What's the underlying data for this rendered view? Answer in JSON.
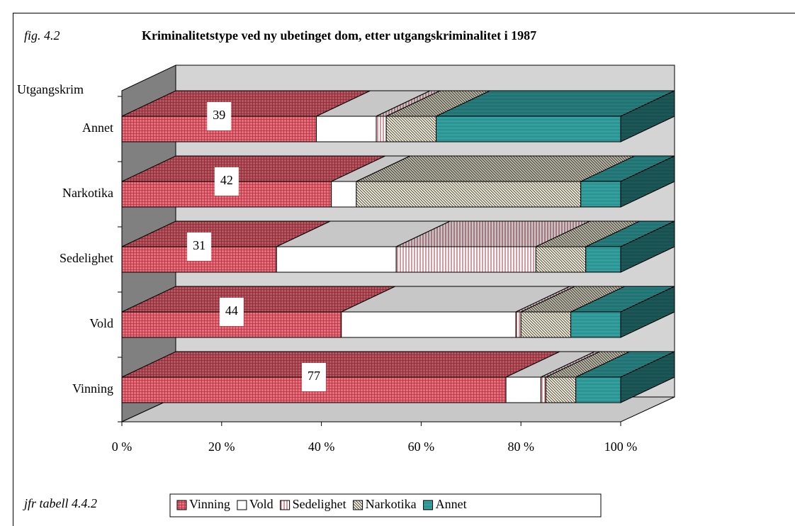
{
  "chart_data": {
    "type": "bar3d_stacked_horizontal",
    "figure_label": "fig. 4.2",
    "title": "Kriminalitetstype ved ny ubetinget dom, etter utgangskriminalitet i 1987",
    "y_axis_label": "Utgangskrim",
    "note": "jfr tabell 4.4.2",
    "categories": [
      "Annet",
      "Narkotika",
      "Sedelighet",
      "Vold",
      "Vinning"
    ],
    "series": [
      {
        "name": "Vinning",
        "color": "#e8707c",
        "values": [
          39,
          42,
          31,
          44,
          77
        ],
        "show_labels": true
      },
      {
        "name": "Vold",
        "color": "#ffffff",
        "values": [
          12,
          5,
          24,
          35,
          7
        ]
      },
      {
        "name": "Sedelighet",
        "color": "#ffffff",
        "values": [
          2,
          0,
          28,
          1,
          1
        ]
      },
      {
        "name": "Narkotika",
        "color": "#f4efd8",
        "values": [
          10,
          45,
          10,
          10,
          6
        ]
      },
      {
        "name": "Annet",
        "color": "#3cc0c0",
        "values": [
          37,
          8,
          7,
          10,
          9
        ]
      }
    ],
    "xlim": [
      0,
      100
    ],
    "xticks": [
      {
        "value": 0,
        "label": "0 %"
      },
      {
        "value": 20,
        "label": "20 %"
      },
      {
        "value": 40,
        "label": "40 %"
      },
      {
        "value": 60,
        "label": "60 %"
      },
      {
        "value": 80,
        "label": "80 %"
      },
      {
        "value": 100,
        "label": "100 %"
      }
    ],
    "legend": "bottom"
  }
}
